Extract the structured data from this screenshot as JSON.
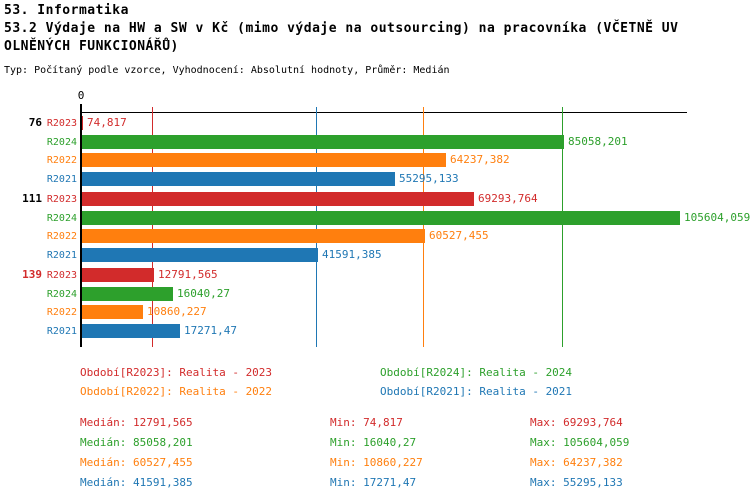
{
  "header": {
    "line1": "53. Informatika",
    "line2": "53.2 Výdaje na HW a SW v Kč (mimo výdaje na outsourcing) na pracovníka (VČETNĚ UV",
    "line3": "OLNĚNÝCH FUNKCIONÁŘŮ)",
    "meta": "Typ: Počítaný podle vzorce, Vyhodnocení: Absolutní hodnoty, Průměr: Medián"
  },
  "colors": {
    "R2023": "#d22b2b",
    "R2024": "#2da02c",
    "R2022": "#ff7f0e",
    "R2021": "#1f77b4",
    "axis": "#000000"
  },
  "chart_data": {
    "type": "bar",
    "orientation": "horizontal",
    "x_axis": {
      "zero_label": "0",
      "min": 0,
      "max": 105604.059,
      "grid": "median-lines"
    },
    "series_order": [
      "R2023",
      "R2024",
      "R2022",
      "R2021"
    ],
    "groups": [
      {
        "label": "76",
        "label_color": "#000000",
        "bars": [
          {
            "series": "R2023",
            "value": 74.817,
            "display": "74,817"
          },
          {
            "series": "R2024",
            "value": 85058.201,
            "display": "85058,201"
          },
          {
            "series": "R2022",
            "value": 64237.382,
            "display": "64237,382"
          },
          {
            "series": "R2021",
            "value": 55295.133,
            "display": "55295,133"
          }
        ]
      },
      {
        "label": "111",
        "label_color": "#000000",
        "bars": [
          {
            "series": "R2023",
            "value": 69293.764,
            "display": "69293,764"
          },
          {
            "series": "R2024",
            "value": 105604.059,
            "display": "105604,059"
          },
          {
            "series": "R2022",
            "value": 60527.455,
            "display": "60527,455"
          },
          {
            "series": "R2021",
            "value": 41591.385,
            "display": "41591,385"
          }
        ]
      },
      {
        "label": "139",
        "label_color": "#d22b2b",
        "bars": [
          {
            "series": "R2023",
            "value": 12791.565,
            "display": "12791,565"
          },
          {
            "series": "R2024",
            "value": 16040.27,
            "display": "16040,27"
          },
          {
            "series": "R2022",
            "value": 10860.227,
            "display": "10860,227"
          },
          {
            "series": "R2021",
            "value": 17271.47,
            "display": "17271,47"
          }
        ]
      }
    ],
    "median_gridlines": [
      {
        "series": "R2023",
        "value": 12791.565
      },
      {
        "series": "R2021",
        "value": 41591.385
      },
      {
        "series": "R2022",
        "value": 60527.455
      },
      {
        "series": "R2024",
        "value": 85058.201
      }
    ]
  },
  "legend": [
    {
      "series": "R2023",
      "text": "Období[R2023]: Realita - 2023"
    },
    {
      "series": "R2024",
      "text": "Období[R2024]: Realita - 2024"
    },
    {
      "series": "R2022",
      "text": "Období[R2022]: Realita - 2022"
    },
    {
      "series": "R2021",
      "text": "Období[R2021]: Realita - 2021"
    }
  ],
  "stats": [
    {
      "series": "R2023",
      "median": "Medián: 12791,565",
      "min": "Min: 74,817",
      "max": "Max: 69293,764"
    },
    {
      "series": "R2024",
      "median": "Medián: 85058,201",
      "min": "Min: 16040,27",
      "max": "Max: 105604,059"
    },
    {
      "series": "R2022",
      "median": "Medián: 60527,455",
      "min": "Min: 10860,227",
      "max": "Max: 64237,382"
    },
    {
      "series": "R2021",
      "median": "Medián: 41591,385",
      "min": "Min: 17271,47",
      "max": "Max: 55295,133"
    }
  ]
}
